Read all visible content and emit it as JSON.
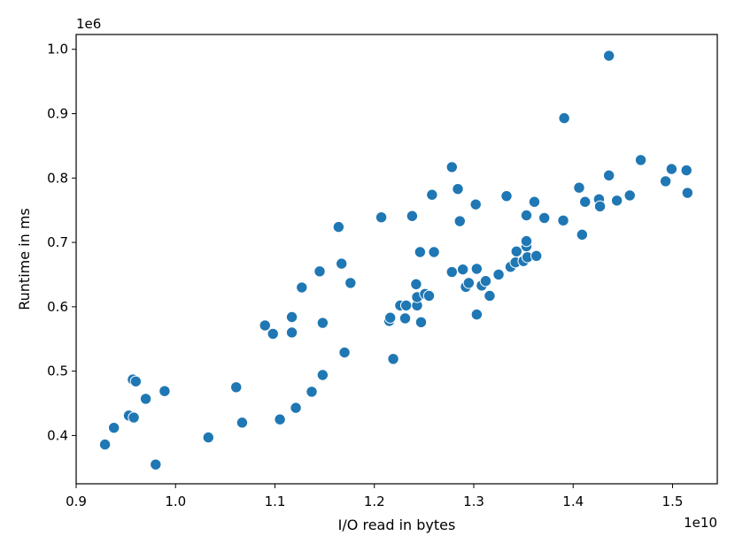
{
  "chart_data": {
    "type": "scatter",
    "xlabel": "I/O read in bytes",
    "ylabel": "Runtime in ms",
    "x_offset_label": "1e10",
    "y_offset_label": "1e6",
    "xlim": [
      0.9,
      1.545
    ],
    "ylim": [
      0.325,
      1.023
    ],
    "x_ticks": [
      0.9,
      1.0,
      1.1,
      1.2,
      1.3,
      1.4,
      1.5
    ],
    "x_tick_labels": [
      "0.9",
      "1.0",
      "1.1",
      "1.2",
      "1.3",
      "1.4",
      "1.5"
    ],
    "y_ticks": [
      0.4,
      0.5,
      0.6,
      0.7,
      0.8,
      0.9,
      1.0
    ],
    "y_tick_labels": [
      "0.4",
      "0.5",
      "0.6",
      "0.7",
      "0.8",
      "0.9",
      "1.0"
    ],
    "grid": false,
    "marker_color": "#1f77b4",
    "marker_edge_color": "#ffffff",
    "series": [
      {
        "x": [
          0.929,
          0.938,
          0.953,
          0.957,
          0.958,
          0.96,
          0.97,
          0.98,
          0.989,
          1.033,
          1.061,
          1.067,
          1.09,
          1.098,
          1.105,
          1.117,
          1.117,
          1.121,
          1.127,
          1.137,
          1.145,
          1.148,
          1.148,
          1.164,
          1.167,
          1.17,
          1.176,
          1.207,
          1.215,
          1.216,
          1.219,
          1.226,
          1.231,
          1.232,
          1.238,
          1.242,
          1.243,
          1.243,
          1.246,
          1.247,
          1.251,
          1.255,
          1.258,
          1.26,
          1.26,
          1.26,
          1.278,
          1.278,
          1.284,
          1.286,
          1.289,
          1.292,
          1.295,
          1.302,
          1.303,
          1.303,
          1.308,
          1.312,
          1.316,
          1.325,
          1.333,
          1.337,
          1.342,
          1.343,
          1.35,
          1.353,
          1.353,
          1.353,
          1.354,
          1.361,
          1.363,
          1.371,
          1.39,
          1.391,
          1.406,
          1.409,
          1.412,
          1.426,
          1.427,
          1.436,
          1.436,
          1.444,
          1.457,
          1.468,
          1.493,
          1.499,
          1.514,
          1.515
        ],
        "y": [
          0.386,
          0.412,
          0.431,
          0.487,
          0.428,
          0.484,
          0.457,
          0.355,
          0.469,
          0.397,
          0.475,
          0.42,
          0.571,
          0.558,
          0.425,
          0.584,
          0.56,
          0.443,
          0.63,
          0.468,
          0.655,
          0.575,
          0.494,
          0.724,
          0.667,
          0.529,
          0.637,
          0.739,
          0.578,
          0.583,
          0.519,
          0.602,
          0.582,
          0.602,
          0.741,
          0.635,
          0.602,
          0.615,
          0.685,
          0.576,
          0.62,
          0.617,
          0.774,
          0.685,
          0.685,
          0.685,
          0.817,
          0.654,
          0.783,
          0.733,
          0.658,
          0.631,
          0.637,
          0.759,
          0.659,
          0.588,
          0.633,
          0.64,
          0.617,
          0.65,
          0.772,
          0.662,
          0.669,
          0.686,
          0.671,
          0.742,
          0.694,
          0.702,
          0.677,
          0.763,
          0.679,
          0.738,
          0.734,
          0.893,
          0.785,
          0.712,
          0.763,
          0.767,
          0.756,
          0.804,
          0.99,
          0.765,
          0.773,
          0.828,
          0.795,
          0.814,
          0.812,
          0.777
        ]
      }
    ]
  }
}
